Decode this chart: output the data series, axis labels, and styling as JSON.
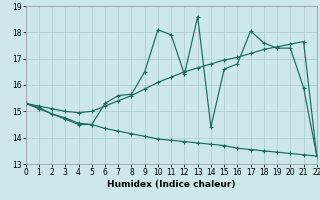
{
  "xlabel": "Humidex (Indice chaleur)",
  "xlim": [
    0,
    22
  ],
  "ylim": [
    13,
    19
  ],
  "yticks": [
    13,
    14,
    15,
    16,
    17,
    18,
    19
  ],
  "xticks": [
    0,
    1,
    2,
    3,
    4,
    5,
    6,
    7,
    8,
    9,
    10,
    11,
    12,
    13,
    14,
    15,
    16,
    17,
    18,
    19,
    20,
    21,
    22
  ],
  "bg_color": "#cce8e8",
  "grid_color": "#aacccc",
  "line_color": "#1a6b5a",
  "line1_x": [
    0,
    1,
    2,
    3,
    4,
    5,
    6,
    7,
    8,
    9,
    10,
    11,
    12,
    13,
    14,
    15,
    16,
    17,
    18,
    19,
    20,
    21,
    22
  ],
  "line1_y": [
    15.3,
    15.1,
    14.9,
    14.7,
    14.5,
    14.5,
    15.3,
    15.6,
    15.65,
    16.5,
    18.1,
    17.9,
    16.4,
    18.6,
    14.4,
    16.6,
    16.8,
    18.05,
    17.6,
    17.4,
    17.4,
    15.9,
    13.3
  ],
  "line2_x": [
    0,
    1,
    2,
    3,
    4,
    5,
    6,
    7,
    8,
    9,
    10,
    11,
    12,
    13,
    14,
    15,
    16,
    17,
    18,
    19,
    20,
    21,
    22
  ],
  "line2_y": [
    15.3,
    15.2,
    15.1,
    15.0,
    14.95,
    15.0,
    15.2,
    15.4,
    15.6,
    15.85,
    16.1,
    16.3,
    16.5,
    16.65,
    16.8,
    16.95,
    17.05,
    17.2,
    17.35,
    17.45,
    17.55,
    17.65,
    13.3
  ],
  "line3_x": [
    0,
    1,
    2,
    3,
    4,
    5,
    6,
    7,
    8,
    9,
    10,
    11,
    12,
    13,
    14,
    15,
    16,
    17,
    18,
    19,
    20,
    21,
    22
  ],
  "line3_y": [
    15.3,
    15.15,
    14.9,
    14.75,
    14.55,
    14.5,
    14.35,
    14.25,
    14.15,
    14.05,
    13.95,
    13.9,
    13.85,
    13.8,
    13.75,
    13.7,
    13.6,
    13.55,
    13.5,
    13.45,
    13.4,
    13.35,
    13.3
  ]
}
